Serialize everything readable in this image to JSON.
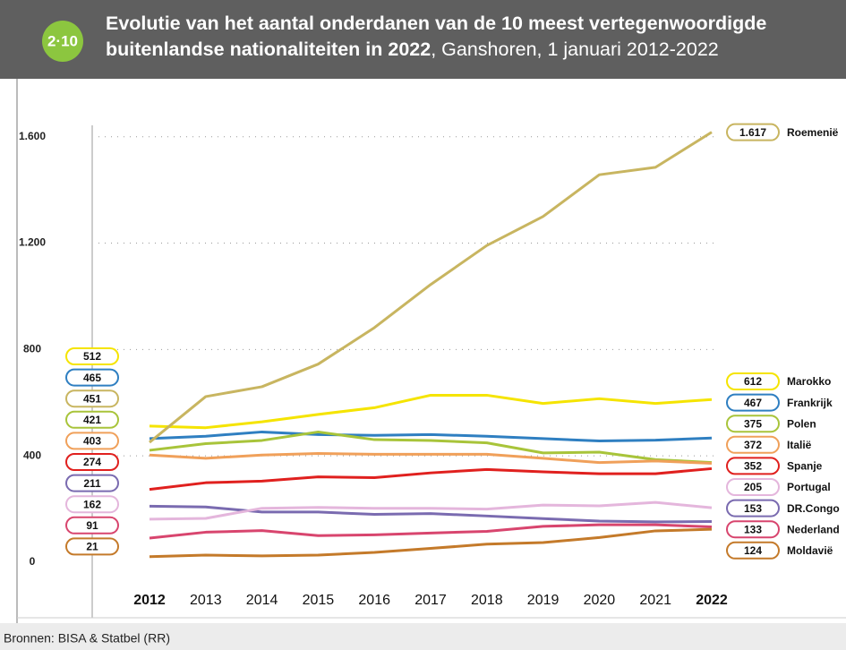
{
  "badge": "2·10",
  "chart_data": {
    "type": "line",
    "title": "Evolutie van het aantal onderdanen van de 10 meest vertegenwoordigde buitenlandse nationaliteiten in 2022",
    "subtitle": ", Ganshoren, 1 januari 2012-2022",
    "categories": [
      "2012",
      "2013",
      "2014",
      "2015",
      "2016",
      "2017",
      "2018",
      "2019",
      "2020",
      "2021",
      "2022"
    ],
    "ylim": [
      0,
      1700
    ],
    "yticks": [
      0,
      400,
      800,
      {
        "value": 1200,
        "label": "1.200"
      },
      {
        "value": 1600,
        "label": "1.600"
      }
    ],
    "grid": true,
    "series": [
      {
        "name": "Marokko",
        "color": "#f5e400",
        "values": [
          512,
          506,
          528,
          556,
          581,
          628,
          628,
          597,
          615,
          597,
          612
        ]
      },
      {
        "name": "Frankrijk",
        "color": "#2f7fc1",
        "values": [
          465,
          474,
          490,
          480,
          477,
          480,
          474,
          465,
          456,
          459,
          467
        ]
      },
      {
        "name": "Roemenië",
        "color": "#c8b560",
        "values": [
          451,
          623,
          660,
          745,
          882,
          1044,
          1191,
          1300,
          1457,
          1485,
          1617
        ],
        "value_labels": [
          "451",
          "623",
          "660",
          "745",
          "882",
          "1044",
          "1191",
          "1300",
          "1457",
          "1485",
          "1.617"
        ]
      },
      {
        "name": "Polen",
        "color": "#a8c43a",
        "values": [
          421,
          446,
          458,
          490,
          461,
          458,
          449,
          411,
          414,
          386,
          375
        ]
      },
      {
        "name": "Italië",
        "color": "#f0a05a",
        "values": [
          403,
          391,
          403,
          409,
          406,
          406,
          406,
          391,
          375,
          381,
          372
        ]
      },
      {
        "name": "Spanje",
        "color": "#e0201e",
        "values": [
          274,
          299,
          305,
          321,
          318,
          336,
          349,
          340,
          333,
          333,
          352
        ]
      },
      {
        "name": "DR.Congo",
        "color": "#7a6bb0",
        "values": [
          211,
          208,
          189,
          189,
          180,
          183,
          174,
          164,
          155,
          152,
          153
        ]
      },
      {
        "name": "Portugal",
        "color": "#e4b6dc",
        "values": [
          162,
          165,
          203,
          206,
          203,
          203,
          200,
          215,
          212,
          225,
          205
        ]
      },
      {
        "name": "Nederland",
        "color": "#d8456e",
        "values": [
          91,
          113,
          119,
          100,
          103,
          110,
          116,
          135,
          141,
          141,
          133
        ]
      },
      {
        "name": "Moldavië",
        "color": "#c47a2a",
        "values": [
          21,
          27,
          24,
          27,
          37,
          52,
          68,
          74,
          93,
          118,
          124
        ]
      }
    ]
  },
  "source": "Bronnen: BISA & Statbel (RR)"
}
